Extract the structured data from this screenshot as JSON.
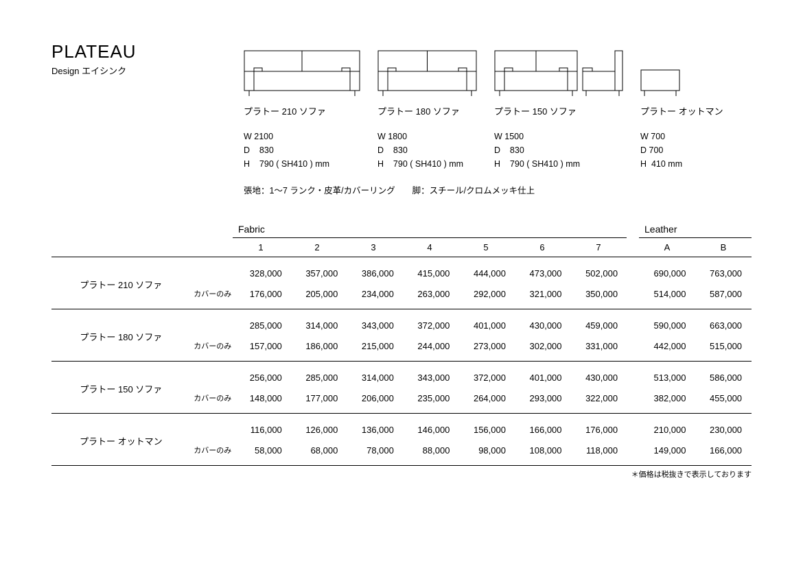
{
  "title": "PLATEAU",
  "subtitle": "Design  エイシンク",
  "products": [
    {
      "name": "プラトー 210 ソファ",
      "w": "W 2100",
      "d": "D    830",
      "h": "H    790 ( SH410 ) mm",
      "diagram_w": 170,
      "type": "sofa"
    },
    {
      "name": "プラトー 180 ソファ",
      "w": "W 1800",
      "d": "D    830",
      "h": "H    790 ( SH410 ) mm",
      "diagram_w": 145,
      "type": "sofa"
    },
    {
      "name": "プラトー 150 ソファ",
      "w": "W 1500",
      "d": "D    830",
      "h": "H    790 ( SH410 ) mm",
      "diagram_w": 122,
      "type": "sofa_side"
    },
    {
      "name": "プラトー オットマン",
      "w": "W 700",
      "d": "D 700",
      "h": "H  410 mm",
      "diagram_w": 58,
      "type": "ottoman"
    }
  ],
  "materials_line": "張地：1～7 ランク・皮革/カバーリング　　脚：スチール/クロムメッキ仕上",
  "table": {
    "fabric_label": "Fabric",
    "leather_label": "Leather",
    "fabric_cols": [
      "1",
      "2",
      "3",
      "4",
      "5",
      "6",
      "7"
    ],
    "leather_cols": [
      "A",
      "B"
    ],
    "cover_only_label": "カバーのみ",
    "rows": [
      {
        "name": "プラトー 210 ソファ",
        "main": [
          "328,000",
          "357,000",
          "386,000",
          "415,000",
          "444,000",
          "473,000",
          "502,000",
          "690,000",
          "763,000"
        ],
        "cover": [
          "176,000",
          "205,000",
          "234,000",
          "263,000",
          "292,000",
          "321,000",
          "350,000",
          "514,000",
          "587,000"
        ]
      },
      {
        "name": "プラトー 180 ソファ",
        "main": [
          "285,000",
          "314,000",
          "343,000",
          "372,000",
          "401,000",
          "430,000",
          "459,000",
          "590,000",
          "663,000"
        ],
        "cover": [
          "157,000",
          "186,000",
          "215,000",
          "244,000",
          "273,000",
          "302,000",
          "331,000",
          "442,000",
          "515,000"
        ]
      },
      {
        "name": "プラトー 150 ソファ",
        "main": [
          "256,000",
          "285,000",
          "314,000",
          "343,000",
          "372,000",
          "401,000",
          "430,000",
          "513,000",
          "586,000"
        ],
        "cover": [
          "148,000",
          "177,000",
          "206,000",
          "235,000",
          "264,000",
          "293,000",
          "322,000",
          "382,000",
          "455,000"
        ]
      },
      {
        "name": "プラトー オットマン",
        "main": [
          "116,000",
          "126,000",
          "136,000",
          "146,000",
          "156,000",
          "166,000",
          "176,000",
          "210,000",
          "230,000"
        ],
        "cover": [
          "58,000",
          "68,000",
          "78,000",
          "88,000",
          "98,000",
          "108,000",
          "118,000",
          "149,000",
          "166,000"
        ]
      }
    ]
  },
  "footnote": "＊価格は税抜きで表示しております",
  "colors": {
    "line": "#000000",
    "bg": "#ffffff"
  }
}
